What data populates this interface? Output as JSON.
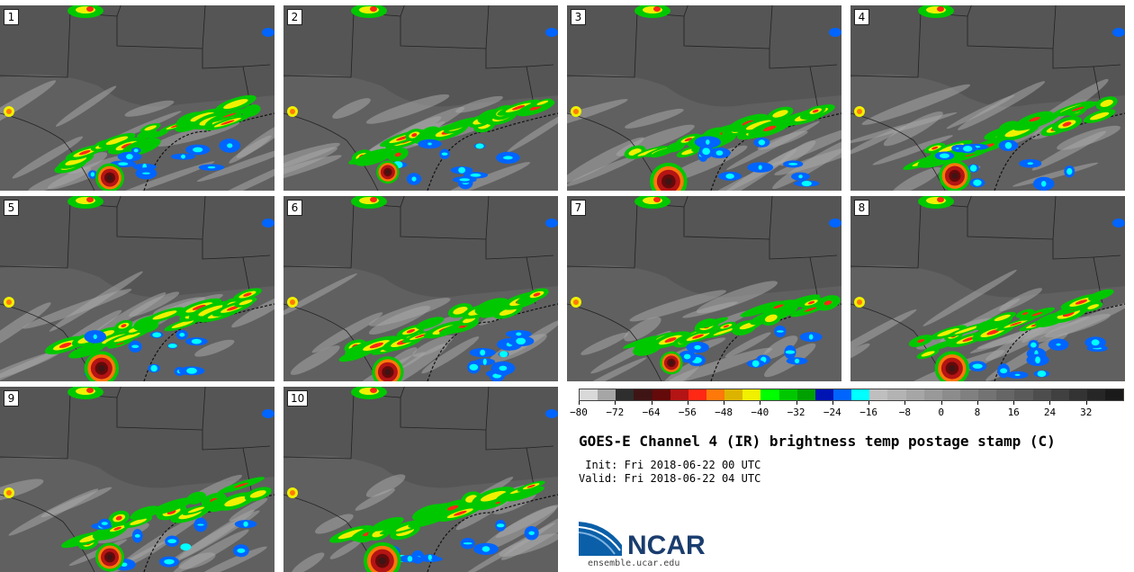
{
  "title": "GOES-E Channel 4 (IR) brightness temp postage stamp (C)",
  "init_line": " Init: Fri 2018-06-22 00 UTC",
  "valid_line": "Valid: Fri 2018-06-22 04 UTC",
  "logo_text": "NCAR",
  "site": "ensemble.ucar.edu",
  "panels": [
    {
      "label": "1",
      "storm": [
        0.4,
        0.93,
        1.0
      ]
    },
    {
      "label": "2",
      "storm": [
        0.38,
        0.9,
        0.8
      ]
    },
    {
      "label": "3",
      "storm": [
        0.37,
        0.95,
        1.3
      ]
    },
    {
      "label": "4",
      "storm": [
        0.38,
        0.92,
        1.1
      ]
    },
    {
      "label": "5",
      "storm": [
        0.37,
        0.93,
        1.2
      ]
    },
    {
      "label": "6",
      "storm": [
        0.38,
        0.95,
        1.1
      ]
    },
    {
      "label": "7",
      "storm": [
        0.38,
        0.9,
        0.8
      ]
    },
    {
      "label": "8",
      "storm": [
        0.37,
        0.93,
        1.2
      ]
    },
    {
      "label": "9",
      "storm": [
        0.4,
        0.92,
        1.0
      ]
    },
    {
      "label": "10",
      "storm": [
        0.36,
        0.94,
        1.3
      ]
    }
  ],
  "colorbar": {
    "colors": [
      "#d9d9d9",
      "#a6a6a6",
      "#2e2e2e",
      "#3f1414",
      "#640a0a",
      "#b41414",
      "#ff2814",
      "#ff780a",
      "#dcb400",
      "#f0f000",
      "#00ff00",
      "#00c800",
      "#00a000",
      "#0014b4",
      "#0064ff",
      "#00ffff",
      "#bfbfbf",
      "#b3b3b3",
      "#a6a6a6",
      "#999999",
      "#8c8c8c",
      "#808080",
      "#737373",
      "#666666",
      "#5a5a5a",
      "#4d4d4d",
      "#404040",
      "#333333",
      "#262626",
      "#1a1a1a"
    ],
    "ticks": [
      "-80",
      "-72",
      "-64",
      "-56",
      "-48",
      "-40",
      "-32",
      "-24",
      "-16",
      "-8",
      "0",
      "8",
      "16",
      "24",
      "32"
    ],
    "range": [
      -80,
      40
    ]
  }
}
